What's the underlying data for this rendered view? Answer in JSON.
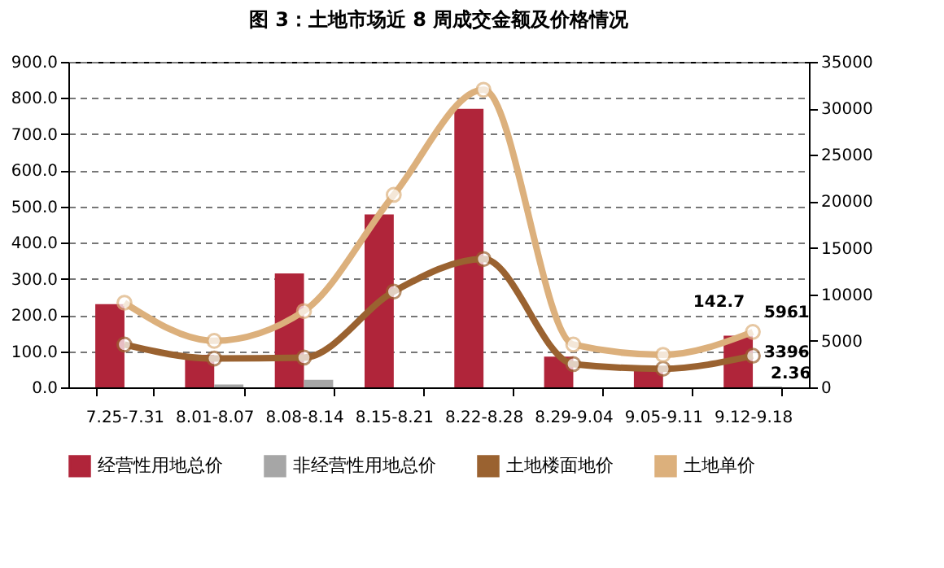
{
  "chart_data": {
    "type": "bar",
    "title": "图 3：土地市场近 8 周成交金额及价格情况",
    "categories": [
      "7.25-7.31",
      "8.01-8.07",
      "8.08-8.14",
      "8.15-8.21",
      "8.22-8.28",
      "8.29-9.04",
      "9.05-9.11",
      "9.12-9.18"
    ],
    "series": [
      {
        "name": "经营性用地总价",
        "color": "#b0253a",
        "values": [
          230,
          90,
          315,
          478,
          770,
          85,
          55,
          142.7
        ],
        "value_labels": [
          null,
          null,
          null,
          null,
          null,
          null,
          null,
          "142.7"
        ]
      },
      {
        "name": "非经营性用地总价",
        "color": "#a6a6a6",
        "values": [
          null,
          8,
          21,
          null,
          null,
          null,
          null,
          2.36
        ],
        "value_labels": [
          null,
          null,
          null,
          null,
          null,
          null,
          null,
          "2.36"
        ]
      },
      {
        "name": "土地楼面地价",
        "type": "line",
        "axis": "y2",
        "color": "#9a6230",
        "values": [
          4600,
          3100,
          3200,
          10300,
          13800,
          2500,
          2000,
          3396
        ],
        "value_labels": [
          null,
          null,
          null,
          null,
          null,
          null,
          null,
          "3396"
        ]
      },
      {
        "name": "土地单价",
        "type": "line",
        "axis": "y2",
        "color": "#dcb07c",
        "values": [
          9100,
          5000,
          8200,
          20700,
          32000,
          4600,
          3500,
          5961
        ],
        "value_labels": [
          null,
          null,
          null,
          null,
          null,
          null,
          null,
          "5961"
        ]
      }
    ],
    "ylim": [
      0,
      900
    ],
    "yticks": [
      {
        "value": 0,
        "label": "0.0"
      },
      {
        "value": 100,
        "label": "100.0"
      },
      {
        "value": 200,
        "label": "200.0"
      },
      {
        "value": 300,
        "label": "300.0"
      },
      {
        "value": 400,
        "label": "400.0"
      },
      {
        "value": 500,
        "label": "500.0"
      },
      {
        "value": 600,
        "label": "600.0"
      },
      {
        "value": 700,
        "label": "700.0"
      },
      {
        "value": 800,
        "label": "800.0"
      },
      {
        "value": 900,
        "label": "900.0"
      }
    ],
    "y2lim": [
      0,
      35000
    ],
    "y2ticks": [
      0,
      5000,
      10000,
      15000,
      20000,
      25000,
      30000,
      35000
    ],
    "grid": "y",
    "legend": "bottom",
    "marker": "circle"
  }
}
